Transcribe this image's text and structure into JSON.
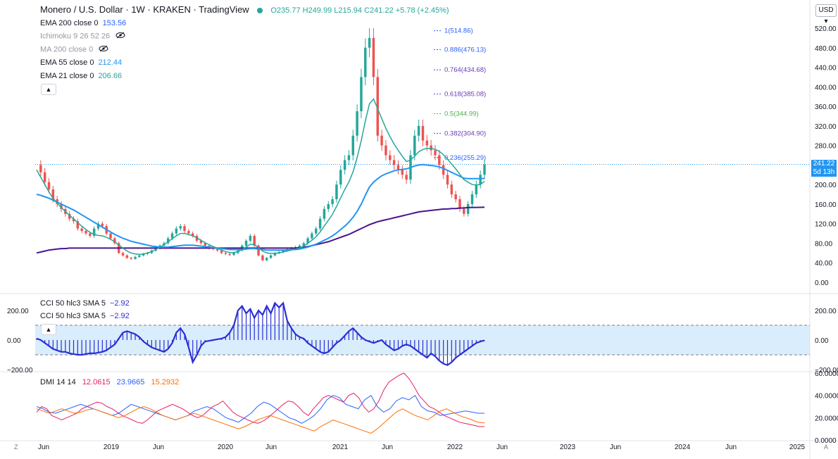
{
  "header": {
    "symbol": "Monero / U.S. Dollar · 1W · KRAKEN · TradingView",
    "ohlc": "O235.77 H249.99 L215.94 C241.22 +5.78 (+2.45%)",
    "currency": "USD"
  },
  "legend": [
    {
      "label": "EMA 200 close 0",
      "value": "153.56",
      "color": "#2962ff"
    },
    {
      "label": "Ichimoku 9 26 52 26",
      "value": "",
      "color": "#9598a1",
      "hidden": true
    },
    {
      "label": "MA 200 close 0",
      "value": "",
      "color": "#9598a1",
      "hidden": true
    },
    {
      "label": "EMA 55 close 0",
      "value": "212.44",
      "color": "#2196f3"
    },
    {
      "label": "EMA 21 close 0",
      "value": "206.66",
      "color": "#26a69a"
    }
  ],
  "last_price": {
    "value": "241.22",
    "countdown": "5d 13h",
    "color": "#2196f3"
  },
  "cci_legend": [
    {
      "label": "CCI 50 hlc3 SMA 5",
      "value": "−2.92"
    },
    {
      "label": "CCI 50 hlc3 SMA 5",
      "value": "−2.92"
    }
  ],
  "dmi_legend": {
    "label": "DMI 14 14",
    "plus": "12.0615",
    "minus": "23.9665",
    "adx": "15.2932"
  },
  "colors": {
    "up": "#26a69a",
    "down": "#ef5350",
    "ema200": "#4a148c",
    "ema55": "#2196f3",
    "ema21": "#26a69a",
    "cci": "#2a2fd4",
    "cci_band": "#bbdefb",
    "dmi_plus": "#2962ff",
    "dmi_minus": "#e91e63",
    "adx": "#ff6d00"
  },
  "corner_left": "Z",
  "corner_right": "A",
  "chart_data": [
    {
      "type": "candlestick",
      "title": "Monero / U.S. Dollar · 1W · KRAKEN",
      "x_ticks": [
        "Jun",
        "2019",
        "Jun",
        "2020",
        "Jun",
        "2021",
        "Jun",
        "2022",
        "Jun",
        "2023",
        "Jun",
        "2024",
        "Jun",
        "2025"
      ],
      "y_ticks": [
        "520.00",
        "480.00",
        "440.00",
        "400.00",
        "360.00",
        "320.00",
        "280.00",
        "240.00",
        "200.00",
        "160.00",
        "120.00",
        "80.00",
        "40.00",
        "0.00"
      ],
      "ylim": [
        0,
        520
      ],
      "close_series": [
        240,
        225,
        205,
        190,
        170,
        160,
        150,
        140,
        130,
        125,
        110,
        105,
        100,
        95,
        110,
        120,
        115,
        100,
        90,
        80,
        60,
        55,
        50,
        48,
        52,
        55,
        58,
        60,
        65,
        70,
        75,
        80,
        90,
        100,
        110,
        115,
        105,
        100,
        95,
        85,
        80,
        75,
        70,
        68,
        65,
        60,
        58,
        56,
        60,
        65,
        75,
        85,
        95,
        75,
        55,
        45,
        50,
        55,
        60,
        62,
        65,
        68,
        70,
        72,
        75,
        80,
        90,
        100,
        110,
        130,
        150,
        160,
        170,
        200,
        230,
        250,
        260,
        300,
        350,
        420,
        480,
        500,
        420,
        300,
        280,
        260,
        250,
        240,
        230,
        220,
        210,
        260,
        300,
        320,
        290,
        280,
        270,
        260,
        240,
        220,
        200,
        180,
        170,
        150,
        140,
        160,
        180,
        200,
        220,
        241.22
      ],
      "ema200": [
        60,
        62,
        64,
        66,
        67,
        68,
        69,
        69,
        70,
        70,
        70,
        70,
        70,
        70,
        70,
        70,
        70,
        70,
        70,
        70,
        70,
        70,
        70,
        70,
        70,
        70,
        70,
        70,
        70,
        70,
        70,
        70,
        70,
        70,
        70,
        70,
        70,
        70,
        70,
        70,
        70,
        70,
        70,
        70,
        70,
        70,
        70,
        70,
        70,
        70,
        70,
        70,
        70,
        70,
        70,
        70,
        70,
        70,
        70,
        70,
        70,
        70,
        70,
        70,
        71,
        72,
        73,
        75,
        77,
        79,
        81,
        83,
        86,
        89,
        92,
        95,
        98,
        102,
        106,
        110,
        114,
        118,
        121,
        124,
        126,
        128,
        130,
        132,
        134,
        136,
        138,
        140,
        142,
        144,
        145,
        146,
        147,
        148,
        149,
        150,
        150,
        151,
        151,
        152,
        152,
        153,
        153,
        153.2,
        153.4,
        153.56
      ],
      "ema55": [
        180,
        178,
        175,
        172,
        168,
        164,
        160,
        156,
        152,
        148,
        143,
        138,
        133,
        128,
        123,
        118,
        113,
        108,
        103,
        98,
        94,
        90,
        87,
        84,
        82,
        80,
        78,
        76,
        74,
        73,
        72,
        72,
        72,
        73,
        74,
        75,
        76,
        76,
        76,
        75,
        74,
        73,
        72,
        71,
        70,
        69,
        68,
        67,
        67,
        67,
        67,
        68,
        69,
        69,
        68,
        67,
        66,
        66,
        66,
        66,
        66,
        66,
        67,
        67,
        68,
        70,
        72,
        75,
        78,
        82,
        86,
        90,
        95,
        101,
        108,
        115,
        123,
        133,
        145,
        160,
        178,
        195,
        205,
        212,
        218,
        222,
        225,
        228,
        230,
        231,
        232,
        235,
        238,
        240,
        241,
        240,
        239,
        238,
        236,
        233,
        229,
        225,
        221,
        217,
        213,
        212,
        212,
        212,
        212,
        212.44
      ],
      "ema21": [
        230,
        215,
        200,
        185,
        172,
        162,
        153,
        145,
        137,
        130,
        122,
        115,
        108,
        102,
        98,
        96,
        95,
        92,
        88,
        83,
        76,
        70,
        64,
        60,
        58,
        57,
        58,
        60,
        63,
        67,
        72,
        77,
        83,
        89,
        95,
        100,
        100,
        98,
        95,
        91,
        86,
        81,
        77,
        73,
        70,
        66,
        63,
        61,
        61,
        63,
        67,
        72,
        78,
        77,
        71,
        64,
        60,
        59,
        59,
        60,
        62,
        64,
        66,
        68,
        70,
        74,
        80,
        86,
        93,
        103,
        115,
        127,
        139,
        155,
        173,
        190,
        205,
        226,
        255,
        290,
        330,
        365,
        375,
        355,
        335,
        315,
        298,
        283,
        270,
        258,
        247,
        250,
        258,
        267,
        272,
        274,
        274,
        272,
        268,
        261,
        252,
        242,
        232,
        221,
        210,
        205,
        200,
        199,
        200,
        206.66
      ]
    },
    {
      "type": "area",
      "title": "CCI 50 hlc3 SMA 5",
      "y_ticks": [
        "200.00",
        "0.00",
        "−200.00"
      ],
      "ylim": [
        -200,
        300
      ],
      "bands": [
        100,
        -100
      ],
      "values": [
        10,
        0,
        -20,
        -40,
        -60,
        -70,
        -80,
        -80,
        -90,
        -95,
        -100,
        -100,
        -95,
        -90,
        -90,
        -85,
        -80,
        -70,
        -50,
        -30,
        10,
        50,
        60,
        50,
        40,
        20,
        -10,
        -30,
        -50,
        -60,
        -70,
        -80,
        -60,
        -20,
        50,
        80,
        40,
        -50,
        -150,
        -100,
        -40,
        -10,
        -5,
        0,
        5,
        10,
        20,
        50,
        100,
        200,
        230,
        180,
        210,
        150,
        200,
        170,
        230,
        180,
        250,
        220,
        250,
        130,
        80,
        40,
        20,
        10,
        -20,
        -40,
        -60,
        -80,
        -90,
        -80,
        -50,
        -20,
        0,
        30,
        60,
        80,
        50,
        20,
        0,
        -10,
        -20,
        -10,
        0,
        -30,
        -50,
        -70,
        -60,
        -40,
        -30,
        -40,
        -60,
        -80,
        -100,
        -120,
        -90,
        -110,
        -140,
        -160,
        -170,
        -150,
        -120,
        -100,
        -80,
        -60,
        -40,
        -20,
        -10,
        -2.92
      ]
    },
    {
      "type": "line",
      "title": "DMI 14 14",
      "y_ticks": [
        "60.0000",
        "40.0000",
        "20.0000",
        "0.0000"
      ],
      "ylim": [
        0,
        60
      ],
      "series": [
        {
          "name": "+DI",
          "values": [
            25,
            30,
            28,
            22,
            20,
            18,
            20,
            22,
            24,
            28,
            30,
            32,
            34,
            33,
            30,
            28,
            25,
            22,
            20,
            18,
            16,
            15,
            18,
            22,
            26,
            28,
            30,
            32,
            30,
            28,
            25,
            22,
            20,
            22,
            26,
            30,
            32,
            35,
            30,
            25,
            22,
            20,
            18,
            16,
            15,
            17,
            20,
            24,
            28,
            32,
            35,
            34,
            30,
            25,
            22,
            28,
            33,
            38,
            40,
            38,
            36,
            34,
            40,
            42,
            38,
            30,
            25,
            28,
            35,
            45,
            52,
            55,
            58,
            60,
            55,
            48,
            40,
            35,
            30,
            28,
            25,
            22,
            20,
            18,
            16,
            15,
            14,
            13,
            12,
            12.06
          ]
        },
        {
          "name": "-DI",
          "values": [
            30,
            28,
            25,
            24,
            26,
            28,
            30,
            32,
            30,
            28,
            26,
            24,
            22,
            24,
            28,
            32,
            30,
            28,
            26,
            24,
            22,
            20,
            18,
            20,
            22,
            26,
            28,
            30,
            28,
            24,
            20,
            18,
            16,
            20,
            24,
            30,
            34,
            32,
            28,
            24,
            20,
            18,
            15,
            18,
            22,
            28,
            36,
            40,
            38,
            32,
            30,
            28,
            36,
            40,
            30,
            25,
            28,
            35,
            38,
            36,
            40,
            30,
            26,
            25,
            22,
            23,
            24,
            25,
            26,
            25,
            24,
            23.97
          ]
        },
        {
          "name": "ADX",
          "values": [
            28,
            26,
            24,
            26,
            28,
            26,
            24,
            25,
            27,
            28,
            26,
            24,
            22,
            20,
            22,
            25,
            28,
            30,
            28,
            25,
            22,
            20,
            18,
            20,
            22,
            24,
            22,
            20,
            18,
            16,
            14,
            12,
            10,
            12,
            15,
            18,
            20,
            22,
            20,
            18,
            16,
            14,
            12,
            10,
            8,
            12,
            15,
            18,
            16,
            14,
            12,
            10,
            8,
            6,
            10,
            15,
            20,
            25,
            28,
            25,
            22,
            20,
            18,
            22,
            26,
            28,
            25,
            22,
            20,
            18,
            16,
            15.29
          ]
        }
      ]
    }
  ],
  "fib_levels": [
    {
      "label": "1(514.86)",
      "price": 514.86,
      "color": "#2962ff"
    },
    {
      "label": "0.886(476.13)",
      "price": 476.13,
      "color": "#2962ff"
    },
    {
      "label": "0.764(434.68)",
      "price": 434.68,
      "color": "#673ab7"
    },
    {
      "label": "0.618(385.08)",
      "price": 385.08,
      "color": "#673ab7"
    },
    {
      "label": "0.5(344.99)",
      "price": 344.99,
      "color": "#4caf50"
    },
    {
      "label": "0.382(304.90)",
      "price": 304.9,
      "color": "#673ab7"
    },
    {
      "label": "0.236(255.29)",
      "price": 255.29,
      "color": "#2962ff"
    }
  ]
}
